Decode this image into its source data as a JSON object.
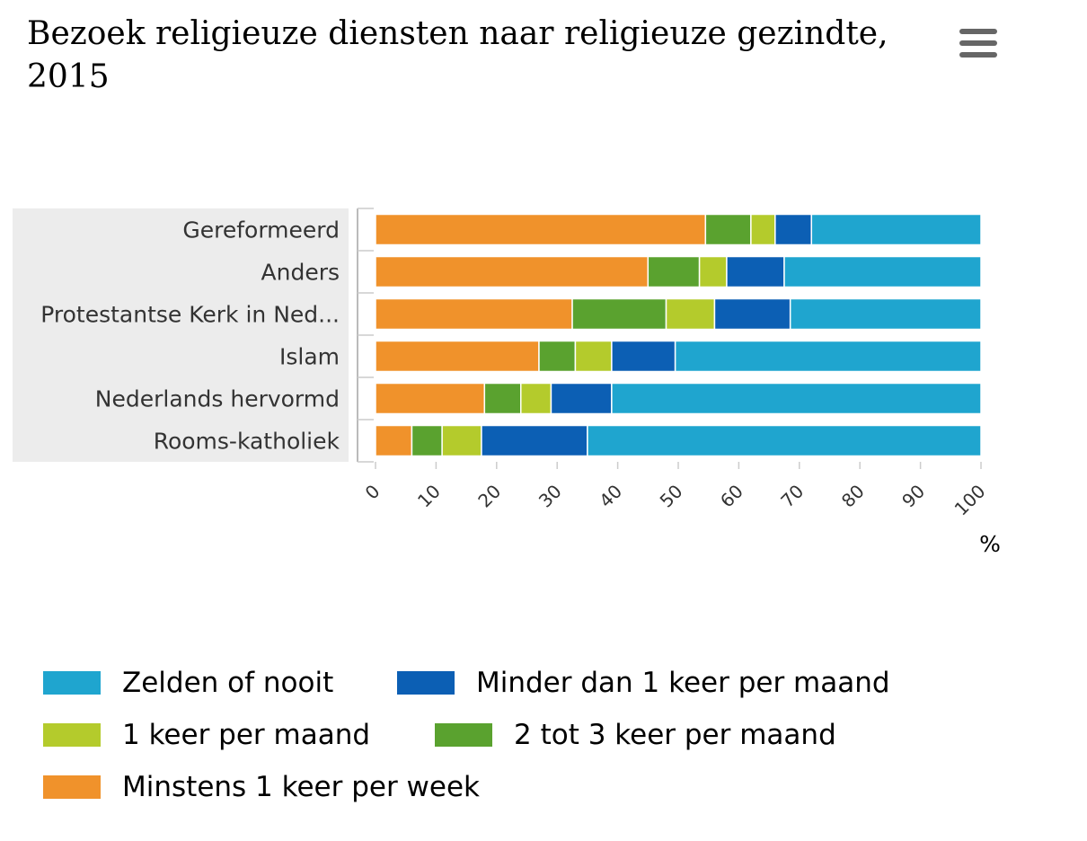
{
  "title": "Bezoek religieuze diensten naar religieuze gezindte, 2015",
  "menu": {
    "icon": "hamburger-menu-icon"
  },
  "chart_data": {
    "type": "bar",
    "orientation": "horizontal",
    "stacked": true,
    "categories": [
      "Gereformeerd",
      "Anders",
      "Protestantse Kerk in Ned...",
      "Islam",
      "Nederlands hervormd",
      "Rooms-katholiek"
    ],
    "series": [
      {
        "name": "Minstens 1 keer per week",
        "color": "#f0922b",
        "values": [
          54.5,
          45,
          32.5,
          27,
          18,
          6
        ]
      },
      {
        "name": "2 tot 3 keer per maand",
        "color": "#5aa22f",
        "values": [
          7.5,
          8.5,
          15.5,
          6,
          6,
          5
        ]
      },
      {
        "name": "1 keer per maand",
        "color": "#b4cb2c",
        "values": [
          4,
          4.5,
          8,
          6,
          5,
          6.5
        ]
      },
      {
        "name": "Minder dan 1 keer per maand",
        "color": "#0c5fb4",
        "values": [
          6,
          9.5,
          12.5,
          10.5,
          10,
          17.5
        ]
      },
      {
        "name": "Zelden of nooit",
        "color": "#1fa5cf",
        "values": [
          28,
          32.5,
          31.5,
          50.5,
          61,
          65
        ]
      }
    ],
    "x_ticks": [
      "0",
      "10",
      "20",
      "30",
      "40",
      "50",
      "60",
      "70",
      "80",
      "90",
      "100"
    ],
    "xlim": [
      0,
      100
    ],
    "unit": "%",
    "grid": false,
    "legend_position": "bottom",
    "legend_order": [
      "Zelden of nooit",
      "Minder dan 1 keer per maand",
      "1 keer per maand",
      "2 tot 3 keer per maand",
      "Minstens 1 keer per week"
    ]
  }
}
